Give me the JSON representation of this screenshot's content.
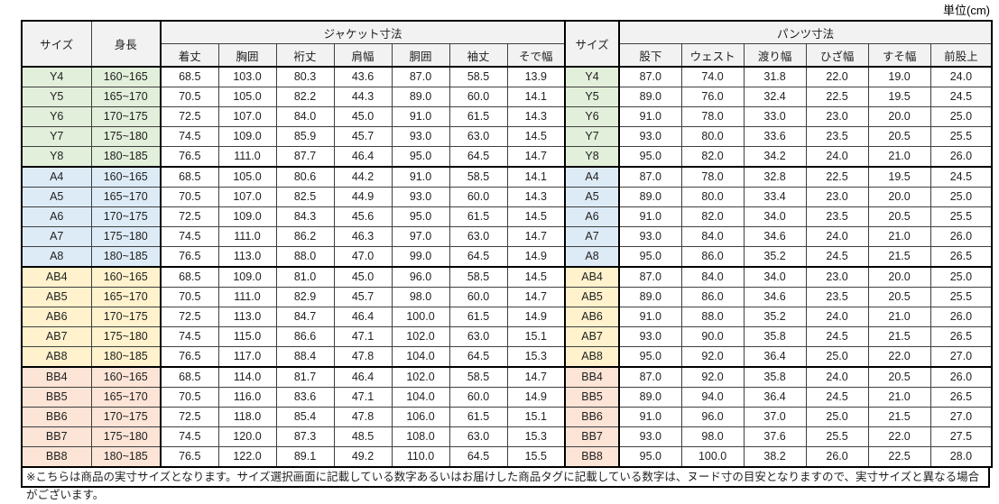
{
  "unit_label": "単位(cm)",
  "table": {
    "size_header": "サイズ",
    "height_header": "身長",
    "size_header_right": "サイズ",
    "jacket_section_label": "ジャケット寸法",
    "pants_section_label": "パンツ寸法",
    "jacket_columns": [
      "着丈",
      "胸囲",
      "裄丈",
      "肩幅",
      "胴囲",
      "袖丈",
      "そで幅"
    ],
    "pants_columns": [
      "股下",
      "ウェスト",
      "渡り幅",
      "ひざ幅",
      "すそ幅",
      "前股上"
    ],
    "group_colors": {
      "Y": "#e2efda",
      "A": "#ddebf7",
      "AB": "#fff2cc",
      "BB": "#fce4d6"
    },
    "rows": [
      {
        "size": "Y4",
        "height": "160~165",
        "group": "Y",
        "jacket": [
          "68.5",
          "103.0",
          "80.3",
          "43.6",
          "87.0",
          "58.5",
          "13.9"
        ],
        "pants": [
          "87.0",
          "74.0",
          "31.8",
          "22.0",
          "19.0",
          "24.0"
        ]
      },
      {
        "size": "Y5",
        "height": "165~170",
        "group": "Y",
        "jacket": [
          "70.5",
          "105.0",
          "82.2",
          "44.3",
          "89.0",
          "60.0",
          "14.1"
        ],
        "pants": [
          "89.0",
          "76.0",
          "32.4",
          "22.5",
          "19.5",
          "24.5"
        ]
      },
      {
        "size": "Y6",
        "height": "170~175",
        "group": "Y",
        "jacket": [
          "72.5",
          "107.0",
          "84.0",
          "45.0",
          "91.0",
          "61.5",
          "14.3"
        ],
        "pants": [
          "91.0",
          "78.0",
          "33.0",
          "23.0",
          "20.0",
          "25.0"
        ]
      },
      {
        "size": "Y7",
        "height": "175~180",
        "group": "Y",
        "jacket": [
          "74.5",
          "109.0",
          "85.9",
          "45.7",
          "93.0",
          "63.0",
          "14.5"
        ],
        "pants": [
          "93.0",
          "80.0",
          "33.6",
          "23.5",
          "20.5",
          "25.5"
        ]
      },
      {
        "size": "Y8",
        "height": "180~185",
        "group": "Y",
        "jacket": [
          "76.5",
          "111.0",
          "87.7",
          "46.4",
          "95.0",
          "64.5",
          "14.7"
        ],
        "pants": [
          "95.0",
          "82.0",
          "34.2",
          "24.0",
          "21.0",
          "26.0"
        ]
      },
      {
        "size": "A4",
        "height": "160~165",
        "group": "A",
        "jacket": [
          "68.5",
          "105.0",
          "80.6",
          "44.2",
          "91.0",
          "58.5",
          "14.1"
        ],
        "pants": [
          "87.0",
          "78.0",
          "32.8",
          "22.5",
          "19.5",
          "24.5"
        ]
      },
      {
        "size": "A5",
        "height": "165~170",
        "group": "A",
        "jacket": [
          "70.5",
          "107.0",
          "82.5",
          "44.9",
          "93.0",
          "60.0",
          "14.3"
        ],
        "pants": [
          "89.0",
          "80.0",
          "33.4",
          "23.0",
          "20.0",
          "25.0"
        ]
      },
      {
        "size": "A6",
        "height": "170~175",
        "group": "A",
        "jacket": [
          "72.5",
          "109.0",
          "84.3",
          "45.6",
          "95.0",
          "61.5",
          "14.5"
        ],
        "pants": [
          "91.0",
          "82.0",
          "34.0",
          "23.5",
          "20.5",
          "25.5"
        ]
      },
      {
        "size": "A7",
        "height": "175~180",
        "group": "A",
        "jacket": [
          "74.5",
          "111.0",
          "86.2",
          "46.3",
          "97.0",
          "63.0",
          "14.7"
        ],
        "pants": [
          "93.0",
          "84.0",
          "34.6",
          "24.0",
          "21.0",
          "26.0"
        ]
      },
      {
        "size": "A8",
        "height": "180~185",
        "group": "A",
        "jacket": [
          "76.5",
          "113.0",
          "88.0",
          "47.0",
          "99.0",
          "64.5",
          "14.9"
        ],
        "pants": [
          "95.0",
          "86.0",
          "35.2",
          "24.5",
          "21.5",
          "26.5"
        ]
      },
      {
        "size": "AB4",
        "height": "160~165",
        "group": "AB",
        "jacket": [
          "68.5",
          "109.0",
          "81.0",
          "45.0",
          "96.0",
          "58.5",
          "14.5"
        ],
        "pants": [
          "87.0",
          "84.0",
          "34.0",
          "23.0",
          "20.0",
          "25.0"
        ]
      },
      {
        "size": "AB5",
        "height": "165~170",
        "group": "AB",
        "jacket": [
          "70.5",
          "111.0",
          "82.9",
          "45.7",
          "98.0",
          "60.0",
          "14.7"
        ],
        "pants": [
          "89.0",
          "86.0",
          "34.6",
          "23.5",
          "20.5",
          "25.5"
        ]
      },
      {
        "size": "AB6",
        "height": "170~175",
        "group": "AB",
        "jacket": [
          "72.5",
          "113.0",
          "84.7",
          "46.4",
          "100.0",
          "61.5",
          "14.9"
        ],
        "pants": [
          "91.0",
          "88.0",
          "35.2",
          "24.0",
          "21.0",
          "26.0"
        ]
      },
      {
        "size": "AB7",
        "height": "175~180",
        "group": "AB",
        "jacket": [
          "74.5",
          "115.0",
          "86.6",
          "47.1",
          "102.0",
          "63.0",
          "15.1"
        ],
        "pants": [
          "93.0",
          "90.0",
          "35.8",
          "24.5",
          "21.5",
          "26.5"
        ]
      },
      {
        "size": "AB8",
        "height": "180~185",
        "group": "AB",
        "jacket": [
          "76.5",
          "117.0",
          "88.4",
          "47.8",
          "104.0",
          "64.5",
          "15.3"
        ],
        "pants": [
          "95.0",
          "92.0",
          "36.4",
          "25.0",
          "22.0",
          "27.0"
        ]
      },
      {
        "size": "BB4",
        "height": "160~165",
        "group": "BB",
        "jacket": [
          "68.5",
          "114.0",
          "81.7",
          "46.4",
          "102.0",
          "58.5",
          "14.7"
        ],
        "pants": [
          "87.0",
          "92.0",
          "35.8",
          "24.0",
          "20.5",
          "26.0"
        ]
      },
      {
        "size": "BB5",
        "height": "165~170",
        "group": "BB",
        "jacket": [
          "70.5",
          "116.0",
          "83.6",
          "47.1",
          "104.0",
          "60.0",
          "14.9"
        ],
        "pants": [
          "89.0",
          "94.0",
          "36.4",
          "24.5",
          "21.0",
          "26.5"
        ]
      },
      {
        "size": "BB6",
        "height": "170~175",
        "group": "BB",
        "jacket": [
          "72.5",
          "118.0",
          "85.4",
          "47.8",
          "106.0",
          "61.5",
          "15.1"
        ],
        "pants": [
          "91.0",
          "96.0",
          "37.0",
          "25.0",
          "21.5",
          "27.0"
        ]
      },
      {
        "size": "BB7",
        "height": "175~180",
        "group": "BB",
        "jacket": [
          "74.5",
          "120.0",
          "87.3",
          "48.5",
          "108.0",
          "63.0",
          "15.3"
        ],
        "pants": [
          "93.0",
          "98.0",
          "37.6",
          "25.5",
          "22.0",
          "27.5"
        ]
      },
      {
        "size": "BB8",
        "height": "180~185",
        "group": "BB",
        "jacket": [
          "76.5",
          "122.0",
          "89.1",
          "49.2",
          "110.0",
          "64.5",
          "15.5"
        ],
        "pants": [
          "95.0",
          "100.0",
          "38.2",
          "26.0",
          "22.5",
          "28.0"
        ]
      }
    ]
  },
  "footnote": "※こちらは商品の実寸サイズとなります。サイズ選択画面に記載している数字あるいはお届けした商品タグに記載している数字は、ヌード寸の目安となりますので、実寸サイズと異なる場合がございます。"
}
